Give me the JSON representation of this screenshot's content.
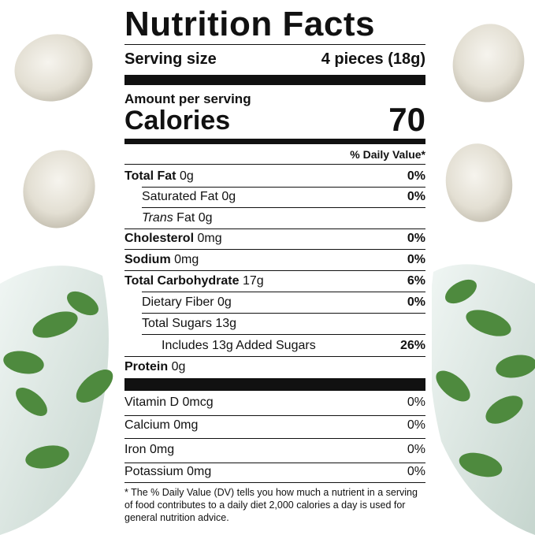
{
  "title": "Nutrition Facts",
  "serving": {
    "label": "Serving size",
    "value": "4 pieces (18g)"
  },
  "amount_per_serving": "Amount per serving",
  "calories": {
    "label": "Calories",
    "value": "70"
  },
  "daily_value_header": "% Daily Value*",
  "nutrients": [
    {
      "name": "Total Fat",
      "amount": "0g",
      "dv": "0%",
      "bold": true,
      "indent": 0
    },
    {
      "name": "Saturated Fat 0g",
      "dv": "0%",
      "bold": false,
      "indent": 1
    },
    {
      "italic": "Trans",
      "name": "Fat 0g",
      "bold": false,
      "indent": 1
    },
    {
      "name": "Cholesterol",
      "amount": "0mg",
      "dv": "0%",
      "bold": true,
      "indent": 0
    },
    {
      "name": "Sodium",
      "amount": "0mg",
      "dv": "0%",
      "bold": true,
      "indent": 0
    },
    {
      "name": "Total Carbohydrate",
      "amount": "17g",
      "dv": "6%",
      "bold": true,
      "indent": 0
    },
    {
      "name": "Dietary Fiber 0g",
      "dv": "0%",
      "bold": false,
      "indent": 1
    },
    {
      "name": "Total Sugars 13g",
      "bold": false,
      "indent": 1
    },
    {
      "name": "Includes 13g Added Sugars",
      "dv": "26%",
      "bold": false,
      "indent": 2
    },
    {
      "name": "Protein",
      "amount": "0g",
      "bold": true,
      "indent": 0
    }
  ],
  "vitamins": [
    {
      "name": "Vitamin D 0mcg",
      "dv": "0%"
    },
    {
      "name": "Calcium 0mg",
      "dv": "0%"
    },
    {
      "name": "Iron 0mg",
      "dv": "0%"
    },
    {
      "name": "Potassium 0mg",
      "dv": "0%"
    }
  ],
  "footnote": "* The % Daily Value (DV) tells you how much a nutrient in a serving of food contributes to a daily diet 2,000 calories a day is used for general nutrition advice."
}
